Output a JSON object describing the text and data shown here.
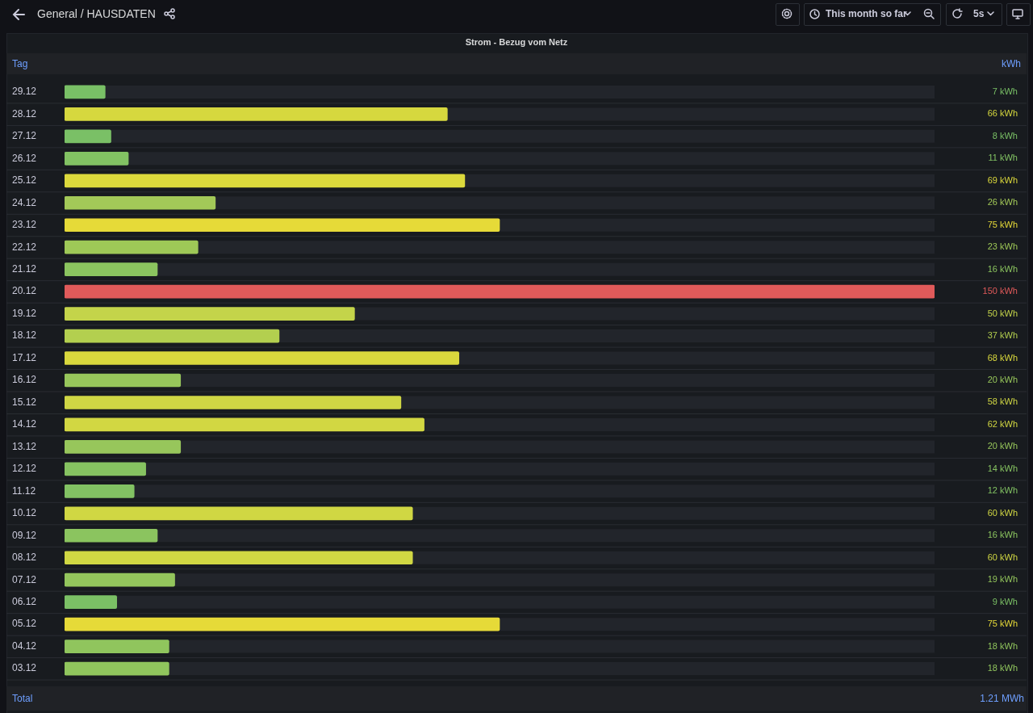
{
  "chart_data": {
    "type": "bar",
    "orientation": "horizontal",
    "title": "Strom - Bezug vom Netz",
    "ylabel": "Tag",
    "categories": [
      "29.12",
      "28.12",
      "27.12",
      "26.12",
      "25.12",
      "24.12",
      "23.12",
      "22.12",
      "21.12",
      "20.12",
      "19.12",
      "18.12",
      "17.12",
      "16.12",
      "15.12",
      "14.12",
      "13.12",
      "12.12",
      "11.12",
      "10.12",
      "09.12",
      "08.12",
      "07.12",
      "06.12",
      "05.12",
      "04.12",
      "03.12"
    ],
    "values": [
      7,
      66,
      8,
      11,
      69,
      26,
      75,
      23,
      16,
      150,
      50,
      37,
      68,
      20,
      58,
      62,
      20,
      14,
      12,
      60,
      16,
      60,
      19,
      9,
      75,
      18,
      18
    ],
    "value_labels": [
      "7 kWh",
      "66 kWh",
      "8 kWh",
      "11 kWh",
      "69 kWh",
      "26 kWh",
      "75 kWh",
      "23 kWh",
      "16 kWh",
      "150 kWh",
      "50 kWh",
      "37 kWh",
      "68 kWh",
      "20 kWh",
      "58 kWh",
      "62 kWh",
      "20 kWh",
      "14 kWh",
      "12 kWh",
      "60 kWh",
      "16 kWh",
      "60 kWh",
      "19 kWh",
      "9 kWh",
      "75 kWh",
      "18 kWh",
      "18 kWh"
    ],
    "colors": [
      "#79c066",
      "#d6d83e",
      "#7ac066",
      "#82c263",
      "#dcd93c",
      "#a3c958",
      "#e6da38",
      "#9ec857",
      "#8bc45f",
      "#e05a5a",
      "#c4d44a",
      "#b3cf4f",
      "#d9d83d",
      "#97c65b",
      "#cfd644",
      "#d2d742",
      "#97c65b",
      "#86c361",
      "#82c263",
      "#d0d743",
      "#8bc45f",
      "#d0d743",
      "#93c55c",
      "#7bc065",
      "#e6da38",
      "#90c55d",
      "#90c55d"
    ],
    "xlim": [
      0,
      150
    ],
    "tick_labels": "y",
    "legend": false,
    "annotations": [
      "General / HAUSDATEN",
      "This month so far",
      "5s",
      "Total",
      "1.21 MWh",
      "kWh"
    ]
  }
}
